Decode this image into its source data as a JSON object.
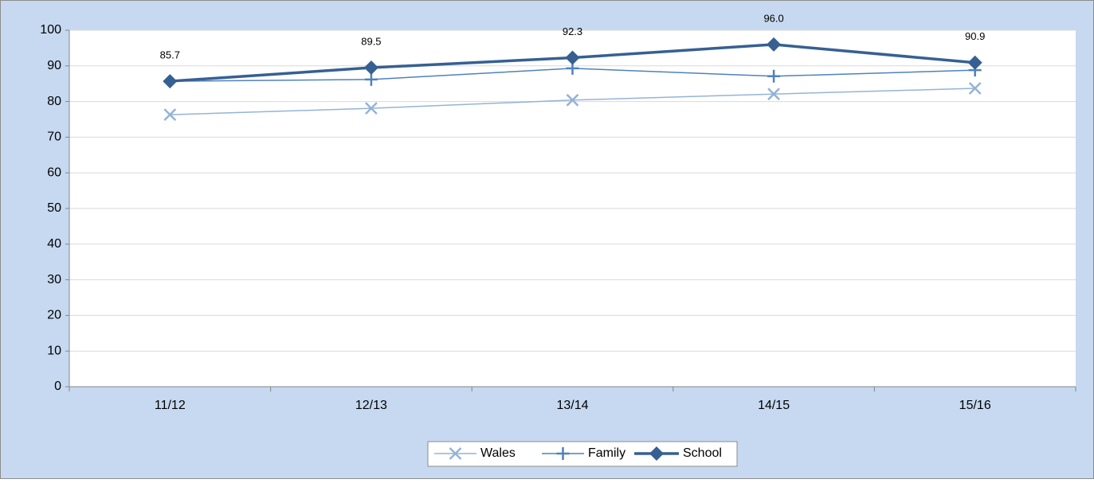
{
  "chart_data": {
    "type": "line",
    "categories": [
      "11/12",
      "12/13",
      "13/14",
      "14/15",
      "15/16"
    ],
    "series": [
      {
        "name": "Wales",
        "color": "#95b3d7",
        "marker": "x",
        "values": [
          76.3,
          78.1,
          80.4,
          82.1,
          83.7
        ]
      },
      {
        "name": "Family",
        "color": "#4f81bd",
        "marker": "plus",
        "values": [
          85.7,
          86.2,
          89.3,
          87.1,
          88.8
        ]
      },
      {
        "name": "School",
        "color": "#366092",
        "marker": "diamond",
        "values": [
          85.7,
          89.5,
          92.3,
          96,
          90.9
        ],
        "value_labels": [
          "85.7",
          "89.5",
          "92.3",
          "96.0",
          "90.9"
        ]
      }
    ],
    "ylim": [
      0,
      100
    ],
    "yticks": [
      0,
      10,
      20,
      30,
      40,
      50,
      60,
      70,
      80,
      90,
      100
    ],
    "grid": true,
    "legend": "bottom"
  }
}
